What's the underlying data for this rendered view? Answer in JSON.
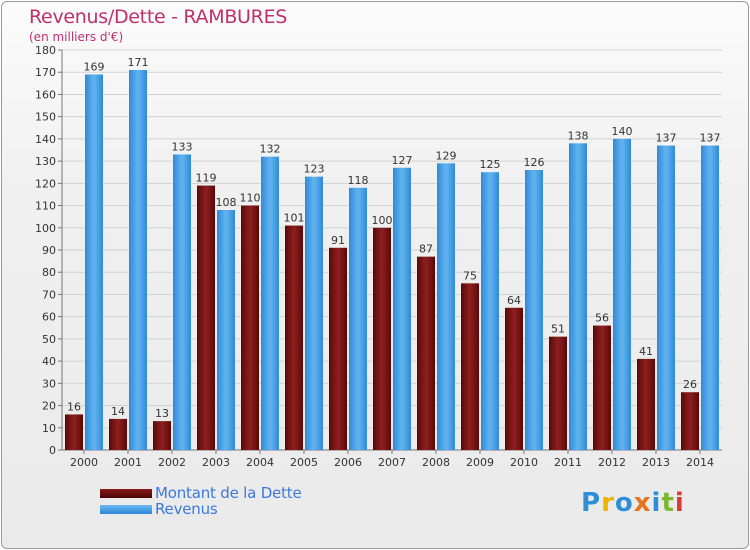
{
  "title": "Revenus/Dette - RAMBURES",
  "subtitle": "(en milliers d'€)",
  "legend": [
    {
      "label": "Montant de la Dette",
      "color": "#6b1010"
    },
    {
      "label": "Revenus",
      "color": "#3d9be6"
    }
  ],
  "logo": {
    "text": "Proxiti",
    "letters": [
      {
        "ch": "P",
        "color": "#2f8ed8"
      },
      {
        "ch": "r",
        "color": "#f0b400"
      },
      {
        "ch": "o",
        "color": "#2f8ed8"
      },
      {
        "ch": "x",
        "color": "#e8731a"
      },
      {
        "ch": "i",
        "color": "#2f8ed8"
      },
      {
        "ch": "t",
        "color": "#7cb82f"
      },
      {
        "ch": "i",
        "color": "#d93a3a"
      }
    ]
  },
  "chart_data": {
    "type": "bar",
    "categories": [
      "2000",
      "2001",
      "2002",
      "2003",
      "2004",
      "2005",
      "2006",
      "2007",
      "2008",
      "2009",
      "2010",
      "2011",
      "2012",
      "2013",
      "2014"
    ],
    "series": [
      {
        "name": "Montant de la Dette",
        "color": "#6b1010",
        "values": [
          16,
          14,
          13,
          119,
          110,
          101,
          91,
          100,
          87,
          75,
          64,
          51,
          56,
          41,
          26
        ]
      },
      {
        "name": "Revenus",
        "color": "#3d9be6",
        "values": [
          169,
          171,
          133,
          108,
          132,
          123,
          118,
          127,
          129,
          125,
          126,
          138,
          140,
          137,
          137
        ]
      }
    ],
    "ylim": [
      0,
      180
    ],
    "yticks": [
      0,
      10,
      20,
      30,
      40,
      50,
      60,
      70,
      80,
      90,
      100,
      110,
      120,
      130,
      140,
      150,
      160,
      170,
      180
    ],
    "grid": true,
    "legend_position": "bottom-left"
  }
}
